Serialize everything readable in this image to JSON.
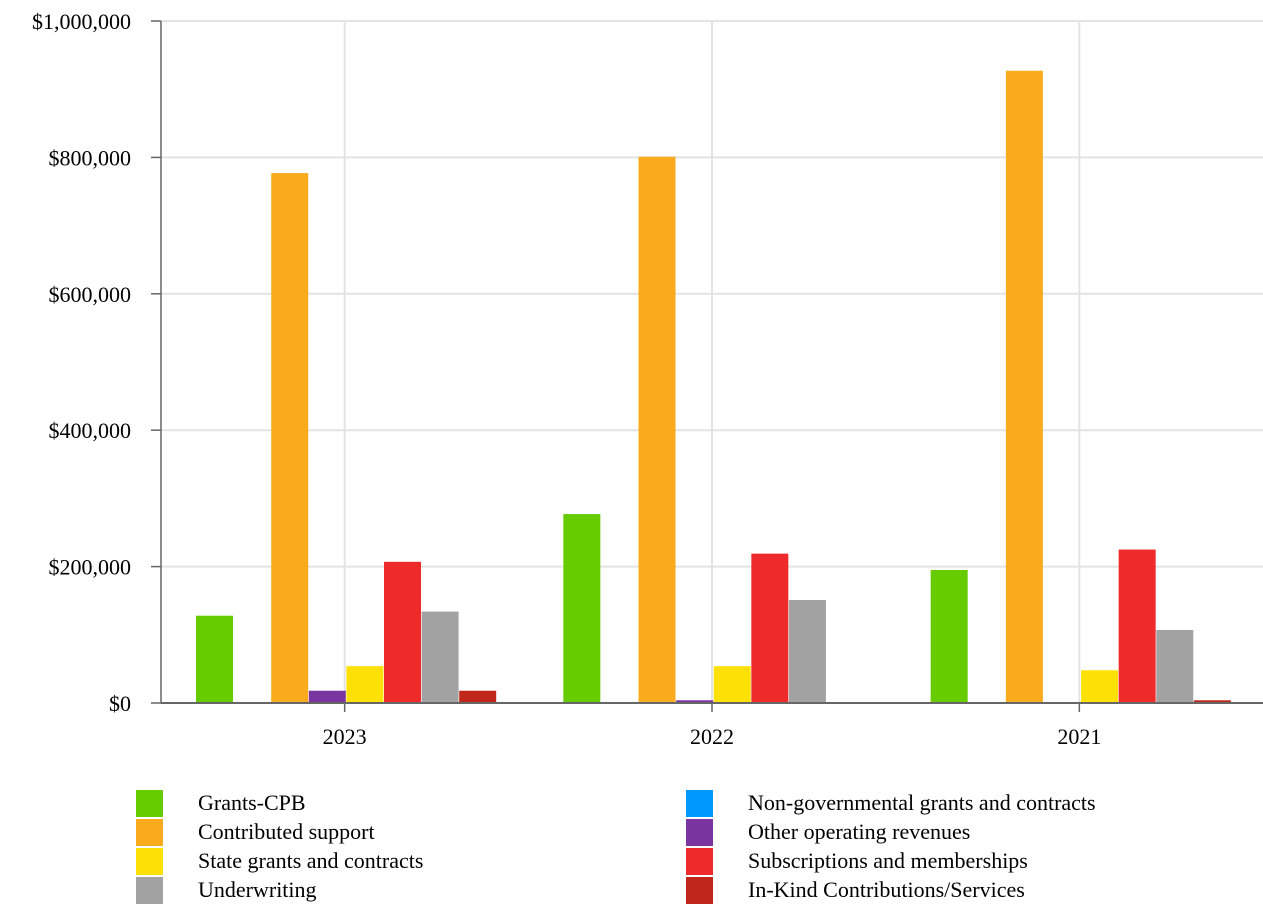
{
  "chart_data": {
    "type": "bar",
    "categories": [
      "2023",
      "2022",
      "2021"
    ],
    "ylim": [
      0,
      1000000
    ],
    "yticks": [
      "$0",
      "$200,000",
      "$400,000",
      "$600,000",
      "$800,000",
      "$1,000,000"
    ],
    "ytick_values": [
      0,
      200000,
      400000,
      600000,
      800000,
      1000000
    ],
    "grid": true,
    "legend_position": "bottom",
    "series": [
      {
        "name": "Grants-CPB",
        "color": "#66cc00",
        "values": [
          128000,
          277000,
          195000
        ]
      },
      {
        "name": "Non-governmental grants and contracts",
        "color": "#0099ff",
        "values": [
          0,
          0,
          0
        ]
      },
      {
        "name": "Contributed support",
        "color": "#f9ab1d",
        "values": [
          777000,
          801000,
          927000
        ]
      },
      {
        "name": "Other operating revenues",
        "color": "#7b35a0",
        "values": [
          18000,
          4000,
          0
        ]
      },
      {
        "name": "State grants and contracts",
        "color": "#fde005",
        "values": [
          54000,
          54000,
          48000
        ]
      },
      {
        "name": "Subscriptions and memberships",
        "color": "#ee2a2a",
        "values": [
          207000,
          219000,
          225000
        ]
      },
      {
        "name": "Underwriting",
        "color": "#a2a2a2",
        "values": [
          134000,
          151000,
          107000
        ]
      },
      {
        "name": "In-Kind Contributions/Services",
        "color": "#c0261a",
        "values": [
          18000,
          0,
          4000
        ]
      }
    ]
  }
}
